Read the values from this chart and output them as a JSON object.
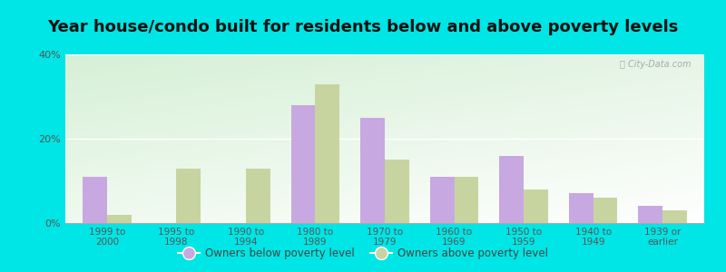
{
  "title": "Year house/condo built for residents below and above poverty levels",
  "categories": [
    "1999 to\n2000",
    "1995 to\n1998",
    "1990 to\n1994",
    "1980 to\n1989",
    "1970 to\n1979",
    "1960 to\n1969",
    "1950 to\n1959",
    "1940 to\n1949",
    "1939 or\nearlier"
  ],
  "below_poverty": [
    11.0,
    0.0,
    0.0,
    28.0,
    25.0,
    11.0,
    16.0,
    7.0,
    4.0
  ],
  "above_poverty": [
    2.0,
    13.0,
    13.0,
    33.0,
    15.0,
    11.0,
    8.0,
    6.0,
    3.0
  ],
  "below_color": "#c8a8e0",
  "above_color": "#c8d4a0",
  "outer_bg": "#00e5e5",
  "ylim": [
    0,
    40
  ],
  "yticks": [
    0,
    20,
    40
  ],
  "ytick_labels": [
    "0%",
    "20%",
    "40%"
  ],
  "legend_below": "Owners below poverty level",
  "legend_above": "Owners above poverty level",
  "title_fontsize": 13,
  "bar_width": 0.35
}
